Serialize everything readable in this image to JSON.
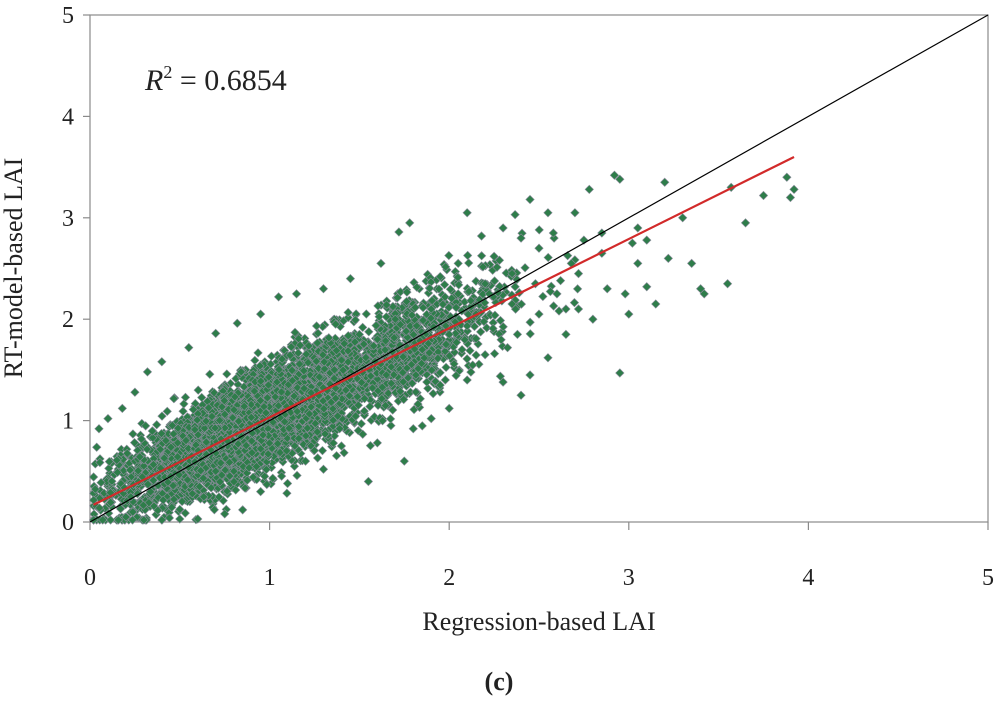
{
  "chart_data": {
    "type": "scatter",
    "title": "",
    "xlabel": "Regression-based LAI",
    "ylabel": "RT-model-based LAI",
    "xlim": [
      0,
      5
    ],
    "ylim": [
      0,
      5
    ],
    "xticks": [
      "0",
      "1",
      "2",
      "3",
      "4",
      "5"
    ],
    "yticks": [
      "0",
      "1",
      "2",
      "3",
      "4",
      "5"
    ],
    "grid": false,
    "annotation": {
      "var": "R",
      "sup": "2",
      "text": " = 0.6854"
    },
    "panel_label": {
      "open": "(",
      "letter": "c",
      "close": ")"
    },
    "series": [
      {
        "name": "points",
        "marker": "diamond",
        "color": "#2e7d4a",
        "edge_color": "#8c8c9c",
        "approx_count": 5200,
        "points": [
          [
            0.05,
            0.92
          ],
          [
            0.1,
            1.02
          ],
          [
            0.18,
            1.12
          ],
          [
            0.25,
            1.28
          ],
          [
            0.32,
            1.48
          ],
          [
            0.4,
            1.58
          ],
          [
            0.55,
            1.72
          ],
          [
            0.7,
            1.86
          ],
          [
            0.82,
            1.96
          ],
          [
            0.95,
            2.05
          ],
          [
            1.05,
            2.22
          ],
          [
            1.15,
            2.25
          ],
          [
            1.3,
            2.3
          ],
          [
            1.45,
            2.4
          ],
          [
            1.62,
            2.55
          ],
          [
            1.72,
            2.86
          ],
          [
            1.78,
            2.95
          ],
          [
            1.95,
            2.42
          ],
          [
            2.05,
            2.55
          ],
          [
            2.1,
            3.05
          ],
          [
            2.18,
            2.82
          ],
          [
            2.25,
            2.62
          ],
          [
            2.3,
            2.9
          ],
          [
            2.35,
            2.45
          ],
          [
            2.4,
            2.8
          ],
          [
            2.45,
            3.18
          ],
          [
            2.5,
            2.7
          ],
          [
            2.55,
            3.05
          ],
          [
            2.62,
            2.38
          ],
          [
            2.7,
            3.05
          ],
          [
            2.72,
            2.1
          ],
          [
            2.78,
            3.28
          ],
          [
            2.85,
            2.65
          ],
          [
            2.92,
            3.42
          ],
          [
            2.95,
            3.38
          ],
          [
            2.98,
            2.25
          ],
          [
            3.05,
            2.9
          ],
          [
            3.05,
            2.55
          ],
          [
            3.1,
            2.32
          ],
          [
            3.15,
            2.15
          ],
          [
            3.2,
            3.35
          ],
          [
            3.3,
            3.0
          ],
          [
            3.35,
            2.55
          ],
          [
            3.4,
            2.3
          ],
          [
            3.42,
            2.25
          ],
          [
            3.55,
            2.35
          ],
          [
            3.57,
            3.3
          ],
          [
            3.65,
            2.95
          ],
          [
            3.75,
            3.22
          ],
          [
            3.88,
            3.4
          ],
          [
            3.9,
            3.2
          ],
          [
            3.92,
            3.28
          ],
          [
            2.95,
            1.47
          ],
          [
            2.8,
            2.0
          ],
          [
            2.65,
            2.1
          ],
          [
            2.55,
            1.62
          ],
          [
            2.45,
            1.45
          ],
          [
            2.4,
            1.25
          ],
          [
            2.3,
            1.38
          ],
          [
            2.2,
            1.65
          ],
          [
            2.1,
            1.4
          ],
          [
            2.0,
            1.12
          ],
          [
            1.95,
            1.35
          ],
          [
            1.9,
            1.02
          ],
          [
            1.8,
            0.92
          ],
          [
            1.75,
            0.6
          ],
          [
            1.6,
            0.78
          ],
          [
            1.55,
            0.4
          ],
          [
            1.4,
            0.75
          ],
          [
            1.3,
            0.52
          ],
          [
            1.2,
            0.6
          ],
          [
            1.1,
            0.38
          ],
          [
            0.95,
            0.3
          ],
          [
            0.85,
            0.12
          ],
          [
            0.75,
            0.08
          ],
          [
            0.6,
            0.03
          ],
          [
            0.5,
            0.03
          ],
          [
            0.4,
            0.02
          ],
          [
            0.3,
            0.02
          ],
          [
            0.2,
            0.05
          ],
          [
            2.6,
            2.25
          ],
          [
            2.68,
            2.55
          ],
          [
            2.75,
            2.78
          ],
          [
            2.88,
            2.3
          ],
          [
            3.02,
            2.75
          ],
          [
            2.5,
            2.05
          ],
          [
            2.35,
            2.15
          ],
          [
            2.2,
            2.35
          ],
          [
            2.15,
            2.05
          ],
          [
            2.05,
            2.25
          ],
          [
            2.0,
            1.85
          ],
          [
            1.9,
            2.1
          ],
          [
            1.85,
            1.7
          ],
          [
            1.7,
            2.0
          ],
          [
            1.65,
            1.45
          ],
          [
            1.5,
            1.85
          ],
          [
            2.38,
            1.85
          ],
          [
            2.48,
            2.35
          ],
          [
            2.58,
            2.85
          ],
          [
            2.65,
            1.85
          ],
          [
            2.72,
            2.45
          ],
          [
            2.85,
            2.85
          ],
          [
            3.1,
            2.78
          ],
          [
            3.22,
            2.6
          ],
          [
            3.0,
            2.05
          ]
        ]
      }
    ],
    "fit_line": {
      "name": "regression fit",
      "color": "#d22a2a",
      "x": [
        0.02,
        3.92
      ],
      "y": [
        0.17,
        3.6
      ]
    },
    "reference_line": {
      "name": "1:1 line",
      "color": "#000000",
      "x": [
        0,
        5
      ],
      "y": [
        0,
        5
      ]
    }
  }
}
